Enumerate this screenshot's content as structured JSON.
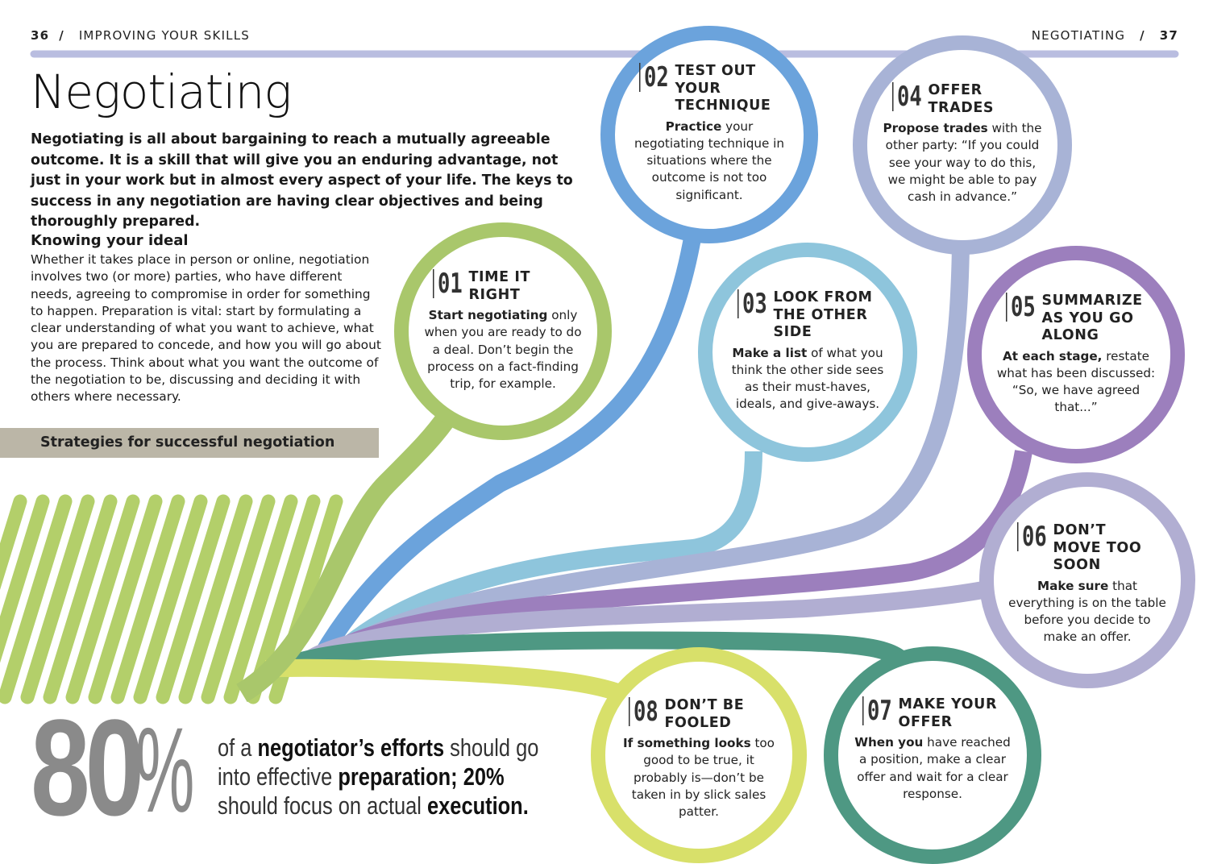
{
  "header": {
    "left_page": "36",
    "left_section": "IMPROVING YOUR SKILLS",
    "right_section": "NEGOTIATING",
    "right_page": "37"
  },
  "title": "Negotiating",
  "intro": "Negotiating is all about bargaining to reach a mutually agreeable outcome. It is a skill that will give you an enduring advantage, not just in your work but in almost every aspect of your life. The keys to success in any negotiation are having clear objectives and being thoroughly prepared.",
  "subsection": {
    "heading": "Knowing your ideal",
    "body": "Whether it takes place in person or online, negotiation involves two (or more) parties, who have different needs, agreeing to compromise in order for something to happen. Preparation is vital: start by formulating a clear understanding of what you want to achieve, what you are prepared to concede, and how you will go about the process. Think about what you want the outcome of the negotiation to be, discussing and deciding it with others where necessary."
  },
  "strategies_label": "Strategies for successful negotiation",
  "strategies": [
    {
      "number": "01",
      "title": "TIME IT RIGHT",
      "lead": "Start negotiating",
      "body": "only when you are ready to do a deal. Don’t begin the process on a fact-finding trip, for example."
    },
    {
      "number": "02",
      "title": "TEST OUT YOUR TECHNIQUE",
      "lead": "Practice",
      "body": "your negotiating technique in situations where the outcome is not too significant."
    },
    {
      "number": "03",
      "title": "LOOK FROM THE OTHER SIDE",
      "lead": "Make a list",
      "body": "of what you think the other side sees as their must-haves, ideals, and give-aways."
    },
    {
      "number": "04",
      "title": "OFFER TRADES",
      "lead": "Propose trades",
      "body": "with the other party: “If you could see your way to do this, we might be able to pay cash in advance.”"
    },
    {
      "number": "05",
      "title": "SUMMARIZE AS YOU GO ALONG",
      "lead": "At each stage,",
      "body": "restate what has been discussed: “So, we have agreed that...”"
    },
    {
      "number": "06",
      "title": "DON’T MOVE TOO SOON",
      "lead": "Make sure",
      "body": "that everything is on the table before you decide to make an offer."
    },
    {
      "number": "07",
      "title": "MAKE YOUR OFFER",
      "lead": "When you",
      "body": "have reached a position, make a clear offer and wait for a clear response."
    },
    {
      "number": "08",
      "title": "DON’T BE FOOLED",
      "lead": "If something looks",
      "body": "too good to be true, it probably is—don’t be taken in by slick sales patter."
    }
  ],
  "stat": {
    "figure": "80",
    "unit": "%",
    "text_parts": [
      "of a ",
      "negotiator’s efforts",
      " should go into effective ",
      "preparation; 20%",
      " should focus on actual ",
      "execution."
    ]
  }
}
